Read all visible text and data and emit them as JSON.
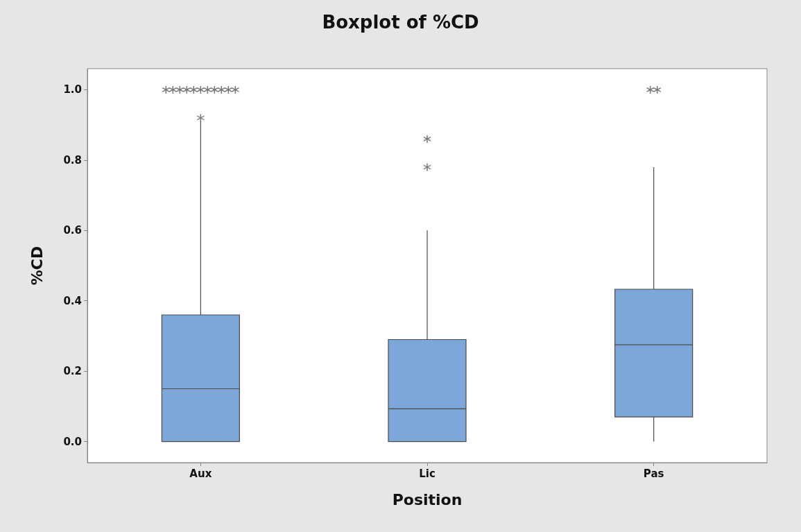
{
  "chart_data": {
    "type": "box",
    "title": "Boxplot of %CD",
    "xlabel": "Position",
    "ylabel": "%CD",
    "categories": [
      "Aux",
      "Lic",
      "Pas"
    ],
    "series": [
      {
        "color": "#7da7d9",
        "boxes": [
          {
            "low": 0,
            "q1": 0,
            "median": 0.15,
            "q3": 0.36,
            "high": 0.91,
            "outliers": [
              0.92,
              1,
              1,
              1,
              1,
              1,
              1,
              1,
              1,
              1,
              1,
              1
            ]
          },
          {
            "low": 0,
            "q1": 0,
            "median": 0.093,
            "q3": 0.29,
            "high": 0.6,
            "outliers": [
              0.78,
              0.86
            ]
          },
          {
            "low": 0,
            "q1": 0.07,
            "median": 0.275,
            "q3": 0.433,
            "high": 0.78,
            "outliers": [
              1,
              1
            ]
          }
        ]
      }
    ],
    "ylim": [
      -0.06,
      1.06
    ],
    "yticks": [
      {
        "value": 0,
        "label": "0.0"
      },
      {
        "value": 0.2,
        "label": "0.2"
      },
      {
        "value": 0.4,
        "label": "0.4"
      },
      {
        "value": 0.6,
        "label": "0.6"
      },
      {
        "value": 0.8,
        "label": "0.8"
      },
      {
        "value": 1,
        "label": "1.0"
      }
    ],
    "marker": "star",
    "grid": false
  }
}
